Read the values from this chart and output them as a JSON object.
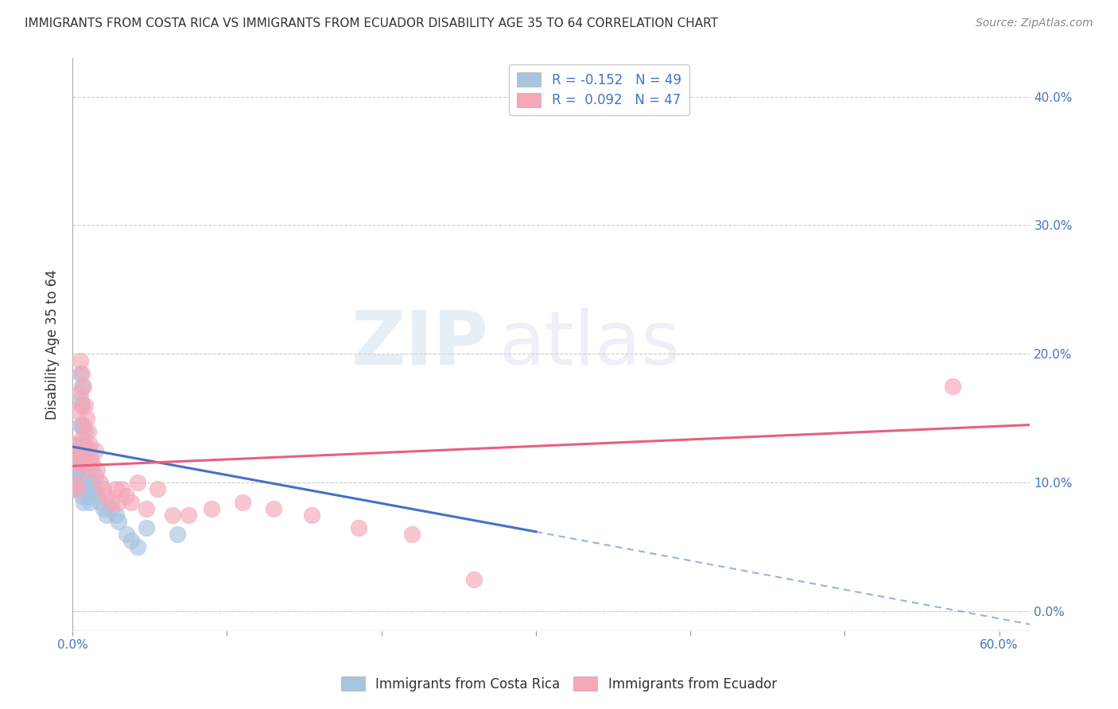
{
  "title": "IMMIGRANTS FROM COSTA RICA VS IMMIGRANTS FROM ECUADOR DISABILITY AGE 35 TO 64 CORRELATION CHART",
  "source": "Source: ZipAtlas.com",
  "ylabel": "Disability Age 35 to 64",
  "x_tick_labels": [
    "0.0%",
    "",
    "",
    "",
    "",
    "",
    "60.0%"
  ],
  "x_tick_values": [
    0.0,
    0.1,
    0.2,
    0.3,
    0.4,
    0.5,
    0.6
  ],
  "y_tick_values": [
    0.0,
    0.1,
    0.2,
    0.3,
    0.4
  ],
  "y_tick_labels_right": [
    "0.0%",
    "10.0%",
    "20.0%",
    "30.0%",
    "40.0%"
  ],
  "xlim": [
    0.0,
    0.62
  ],
  "ylim": [
    -0.015,
    0.43
  ],
  "R_blue": -0.152,
  "N_blue": 49,
  "R_pink": 0.092,
  "N_pink": 47,
  "legend_label_blue": "Immigrants from Costa Rica",
  "legend_label_pink": "Immigrants from Ecuador",
  "color_blue": "#a8c4e0",
  "color_pink": "#f4a8b8",
  "color_blue_line": "#4472c4",
  "color_pink_line": "#e8607a",
  "color_axis_labels": "#4472c4",
  "color_title": "#333333",
  "color_source": "#888888",
  "color_legend_text": "#4472c4",
  "grid_color": "#cccccc",
  "background_color": "#ffffff",
  "watermark_zip": "ZIP",
  "watermark_atlas": "atlas",
  "blue_scatter_x": [
    0.001,
    0.002,
    0.002,
    0.003,
    0.003,
    0.003,
    0.004,
    0.004,
    0.004,
    0.004,
    0.005,
    0.005,
    0.005,
    0.005,
    0.005,
    0.006,
    0.006,
    0.006,
    0.006,
    0.006,
    0.007,
    0.007,
    0.007,
    0.007,
    0.008,
    0.008,
    0.008,
    0.009,
    0.009,
    0.01,
    0.01,
    0.011,
    0.011,
    0.012,
    0.013,
    0.014,
    0.015,
    0.016,
    0.018,
    0.02,
    0.022,
    0.025,
    0.028,
    0.03,
    0.035,
    0.038,
    0.042,
    0.048,
    0.068
  ],
  "blue_scatter_y": [
    0.115,
    0.105,
    0.095,
    0.13,
    0.12,
    0.11,
    0.125,
    0.115,
    0.105,
    0.095,
    0.185,
    0.165,
    0.145,
    0.125,
    0.095,
    0.175,
    0.16,
    0.145,
    0.125,
    0.09,
    0.13,
    0.115,
    0.1,
    0.085,
    0.14,
    0.12,
    0.095,
    0.115,
    0.09,
    0.125,
    0.095,
    0.115,
    0.085,
    0.11,
    0.1,
    0.095,
    0.105,
    0.09,
    0.085,
    0.08,
    0.075,
    0.08,
    0.075,
    0.07,
    0.06,
    0.055,
    0.05,
    0.065,
    0.06
  ],
  "pink_scatter_x": [
    0.001,
    0.002,
    0.002,
    0.003,
    0.003,
    0.004,
    0.004,
    0.005,
    0.005,
    0.005,
    0.006,
    0.006,
    0.006,
    0.007,
    0.007,
    0.008,
    0.008,
    0.009,
    0.01,
    0.01,
    0.011,
    0.012,
    0.013,
    0.015,
    0.016,
    0.018,
    0.02,
    0.022,
    0.025,
    0.028,
    0.03,
    0.032,
    0.035,
    0.038,
    0.042,
    0.048,
    0.055,
    0.065,
    0.075,
    0.09,
    0.11,
    0.13,
    0.155,
    0.185,
    0.22,
    0.26,
    0.57
  ],
  "pink_scatter_y": [
    0.115,
    0.13,
    0.1,
    0.125,
    0.095,
    0.155,
    0.115,
    0.195,
    0.17,
    0.12,
    0.185,
    0.16,
    0.135,
    0.175,
    0.145,
    0.16,
    0.13,
    0.15,
    0.14,
    0.11,
    0.13,
    0.12,
    0.115,
    0.125,
    0.11,
    0.1,
    0.095,
    0.09,
    0.085,
    0.095,
    0.085,
    0.095,
    0.09,
    0.085,
    0.1,
    0.08,
    0.095,
    0.075,
    0.075,
    0.08,
    0.085,
    0.08,
    0.075,
    0.065,
    0.06,
    0.025,
    0.175
  ],
  "blue_line_x0": 0.0,
  "blue_line_y0": 0.128,
  "blue_line_x1": 0.3,
  "blue_line_y1": 0.062,
  "blue_line_dash_x0": 0.3,
  "blue_line_dash_y0": 0.062,
  "blue_line_dash_x1": 0.62,
  "blue_line_dash_y1": -0.01,
  "pink_line_x0": 0.0,
  "pink_line_y0": 0.113,
  "pink_line_x1": 0.62,
  "pink_line_y1": 0.145
}
